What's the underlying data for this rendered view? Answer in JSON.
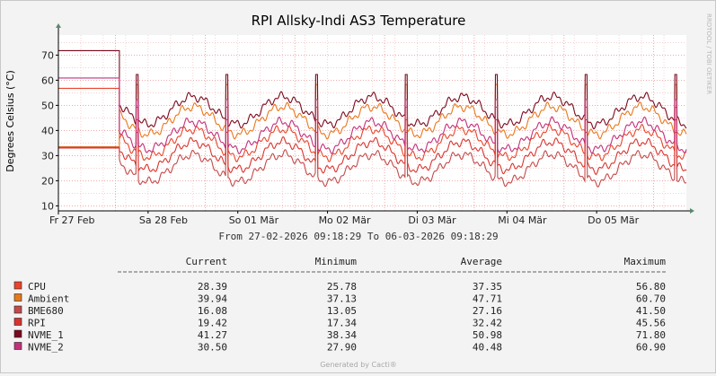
{
  "chart_data": {
    "type": "line",
    "title": "RPI Allsky-Indi AS3 Temperature",
    "ylabel": "Degrees Celsius (°C)",
    "watermark": "RRDTOOL / TOBI OETIKER",
    "ylim": [
      8,
      78
    ],
    "yticks": [
      10,
      20,
      30,
      40,
      50,
      60,
      70
    ],
    "xlim": [
      0,
      7
    ],
    "xticks": [
      {
        "label": "Fr 27 Feb",
        "x": 0.0
      },
      {
        "label": "Sa 28 Feb",
        "x": 1.0
      },
      {
        "label": "So 01 Mär",
        "x": 2.0
      },
      {
        "label": "Mo 02 Mär",
        "x": 3.0
      },
      {
        "label": "Di 03 Mär",
        "x": 4.0
      },
      {
        "label": "Mi 04 Mär",
        "x": 5.0
      },
      {
        "label": "Do 05 Mär",
        "x": 6.0
      }
    ],
    "grid": true,
    "range_text": "From 27-02-2026 09:18:29 To 06-03-2026 09:18:29",
    "columns": [
      "Current",
      "Minimum",
      "Average",
      "Maximum"
    ],
    "series": [
      {
        "name": "CPU",
        "color": "#e8452c",
        "current": "28.39",
        "minimum": "25.78",
        "average": "37.35",
        "maximum": "56.80",
        "flat": 56.8,
        "base": 35,
        "amp": 11
      },
      {
        "name": "Ambient",
        "color": "#e8781c",
        "current": "39.94",
        "minimum": "37.13",
        "average": "47.71",
        "maximum": "60.70",
        "flat": 33.5,
        "base": 44,
        "amp": 11
      },
      {
        "name": "BME680",
        "color": "#c34a4a",
        "current": "16.08",
        "minimum": "13.05",
        "average": "27.16",
        "maximum": "41.50",
        "flat": 33.3,
        "base": 25,
        "amp": 11
      },
      {
        "name": "RPI",
        "color": "#d8342e",
        "current": "19.42",
        "minimum": "17.34",
        "average": "32.42",
        "maximum": "45.56",
        "flat": 33.0,
        "base": 30,
        "amp": 11
      },
      {
        "name": "NVME_1",
        "color": "#7a0a1e",
        "current": "41.27",
        "minimum": "38.34",
        "average": "50.98",
        "maximum": "71.80",
        "flat": 71.8,
        "base": 48,
        "amp": 11
      },
      {
        "name": "NVME_2",
        "color": "#c2307a",
        "current": "30.50",
        "minimum": "27.90",
        "average": "40.48",
        "maximum": "60.90",
        "flat": 60.9,
        "base": 38,
        "amp": 11
      }
    ]
  },
  "footer": "Generated by Cacti®"
}
